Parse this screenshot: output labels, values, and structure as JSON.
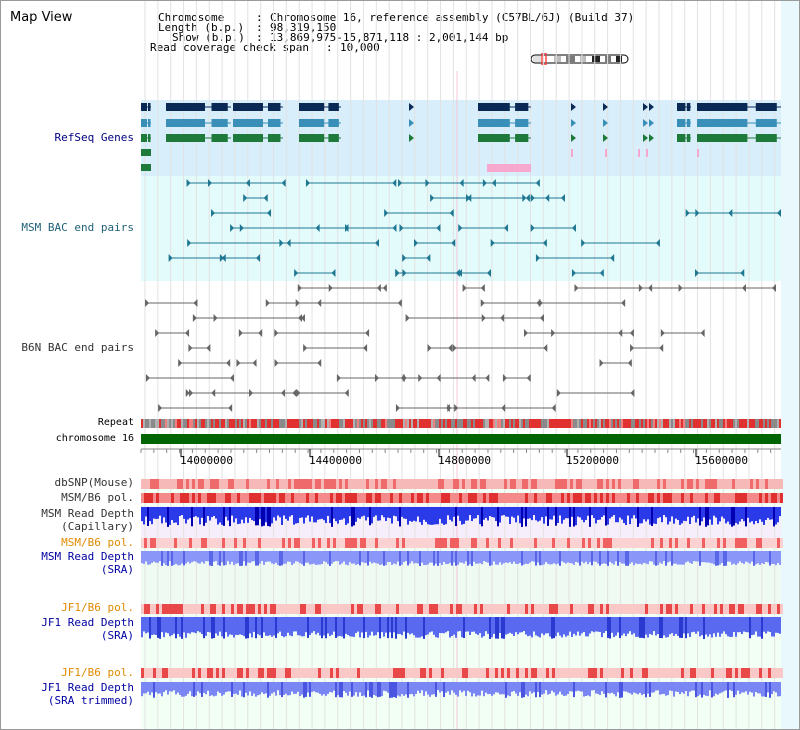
{
  "header": {
    "title": "Map View",
    "info": {
      "chromosome_key": "Chromosome",
      "chromosome_value": "Chromosome 16, reference assembly (C57BL/6J) (Build 37)",
      "length_key": "Length (b.p.)",
      "length_value": "98,319,150",
      "show_key": "Show (b.p.)",
      "show_value": "13,869,975-15,871,118 : 2,001,144 bp",
      "span_key": "Read coverage check span",
      "span_value": "10,000"
    }
  },
  "tracks": {
    "refseq": "RefSeq Genes",
    "msm_bac": "MSM BAC end pairs",
    "b6n_bac": "B6N BAC end pairs",
    "repeat": "Repeat",
    "chromosome": "chromosome 16",
    "dbsnp": "dbSNP(Mouse)",
    "msm_b6_pol_1": "MSM/B6 pol.",
    "msm_depth_cap_1": "MSM Read Depth",
    "msm_depth_cap_2": "(Capillary)",
    "msm_b6_pol_2": "MSM/B6 pol.",
    "msm_depth_sra_1": "MSM Read Depth",
    "msm_depth_sra_2": "(SRA)",
    "jf1_b6_pol_1": "JF1/B6 pol.",
    "jf1_depth_sra_1": "JF1 Read Depth",
    "jf1_depth_sra_2": "(SRA)",
    "jf1_b6_pol_2": "JF1/B6 pol.",
    "jf1_depth_trim_1": "JF1 Read Depth",
    "jf1_depth_trim_2": "(SRA trimmed)"
  },
  "axis": {
    "ticks": [
      "14000000",
      "14400000",
      "14800000",
      "15200000",
      "15600000"
    ]
  },
  "colors": {
    "refseq_label": "#000080",
    "bac_label": "#1f5f78",
    "b6n_label": "#333333",
    "orange_label": "#e08a00",
    "blue_label": "#0000a0",
    "chromosome_bar": "#006400"
  }
}
